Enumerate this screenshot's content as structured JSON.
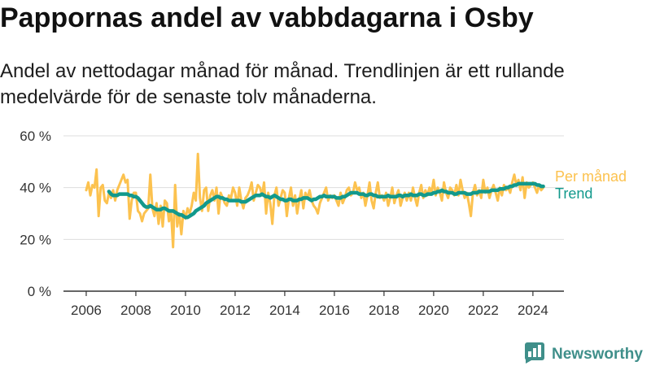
{
  "chart_data": {
    "type": "line",
    "title": "Pappornas andel av vabbdagarna i Osby",
    "subtitle": "Andel av nettodagar månad för månad. Trendlinjen är ett rullande medelvärde för de senaste tolv månaderna.",
    "xlabel": "",
    "ylabel": "",
    "xlim": [
      "2005-02-01",
      "2025-04-01"
    ],
    "ylim": [
      0,
      60
    ],
    "grid": "horizontal",
    "legend": "right",
    "yticks": [
      {
        "value": 0,
        "label": "0 %"
      },
      {
        "value": 20,
        "label": "20 %"
      },
      {
        "value": 40,
        "label": "40 %"
      },
      {
        "value": 60,
        "label": "60 %"
      }
    ],
    "xticks": [
      {
        "value": "2006-01-01",
        "label": "2006"
      },
      {
        "value": "2008-01-01",
        "label": "2008"
      },
      {
        "value": "2010-01-01",
        "label": "2010"
      },
      {
        "value": "2012-01-01",
        "label": "2012"
      },
      {
        "value": "2014-01-01",
        "label": "2014"
      },
      {
        "value": "2016-01-01",
        "label": "2016"
      },
      {
        "value": "2018-01-01",
        "label": "2018"
      },
      {
        "value": "2020-01-01",
        "label": "2020"
      },
      {
        "value": "2022-01-01",
        "label": "2022"
      },
      {
        "value": "2024-01-01",
        "label": "2024"
      }
    ],
    "x": [
      "2006-01",
      "2006-02",
      "2006-03",
      "2006-04",
      "2006-05",
      "2006-06",
      "2006-07",
      "2006-08",
      "2006-09",
      "2006-10",
      "2006-11",
      "2006-12",
      "2007-01",
      "2007-02",
      "2007-03",
      "2007-04",
      "2007-05",
      "2007-06",
      "2007-07",
      "2007-08",
      "2007-09",
      "2007-10",
      "2007-11",
      "2007-12",
      "2008-01",
      "2008-02",
      "2008-03",
      "2008-04",
      "2008-05",
      "2008-06",
      "2008-07",
      "2008-08",
      "2008-09",
      "2008-10",
      "2008-11",
      "2008-12",
      "2009-01",
      "2009-02",
      "2009-03",
      "2009-04",
      "2009-05",
      "2009-06",
      "2009-07",
      "2009-08",
      "2009-09",
      "2009-10",
      "2009-11",
      "2009-12",
      "2010-01",
      "2010-02",
      "2010-03",
      "2010-04",
      "2010-05",
      "2010-06",
      "2010-07",
      "2010-08",
      "2010-09",
      "2010-10",
      "2010-11",
      "2010-12",
      "2011-01",
      "2011-02",
      "2011-03",
      "2011-04",
      "2011-05",
      "2011-06",
      "2011-07",
      "2011-08",
      "2011-09",
      "2011-10",
      "2011-11",
      "2011-12",
      "2012-01",
      "2012-02",
      "2012-03",
      "2012-04",
      "2012-05",
      "2012-06",
      "2012-07",
      "2012-08",
      "2012-09",
      "2012-10",
      "2012-11",
      "2012-12",
      "2013-01",
      "2013-02",
      "2013-03",
      "2013-04",
      "2013-05",
      "2013-06",
      "2013-07",
      "2013-08",
      "2013-09",
      "2013-10",
      "2013-11",
      "2013-12",
      "2014-01",
      "2014-02",
      "2014-03",
      "2014-04",
      "2014-05",
      "2014-06",
      "2014-07",
      "2014-08",
      "2014-09",
      "2014-10",
      "2014-11",
      "2014-12",
      "2015-01",
      "2015-02",
      "2015-03",
      "2015-04",
      "2015-05",
      "2015-06",
      "2015-07",
      "2015-08",
      "2015-09",
      "2015-10",
      "2015-11",
      "2015-12",
      "2016-01",
      "2016-02",
      "2016-03",
      "2016-04",
      "2016-05",
      "2016-06",
      "2016-07",
      "2016-08",
      "2016-09",
      "2016-10",
      "2016-11",
      "2016-12",
      "2017-01",
      "2017-02",
      "2017-03",
      "2017-04",
      "2017-05",
      "2017-06",
      "2017-07",
      "2017-08",
      "2017-09",
      "2017-10",
      "2017-11",
      "2017-12",
      "2018-01",
      "2018-02",
      "2018-03",
      "2018-04",
      "2018-05",
      "2018-06",
      "2018-07",
      "2018-08",
      "2018-09",
      "2018-10",
      "2018-11",
      "2018-12",
      "2019-01",
      "2019-02",
      "2019-03",
      "2019-04",
      "2019-05",
      "2019-06",
      "2019-07",
      "2019-08",
      "2019-09",
      "2019-10",
      "2019-11",
      "2019-12",
      "2020-01",
      "2020-02",
      "2020-03",
      "2020-04",
      "2020-05",
      "2020-06",
      "2020-07",
      "2020-08",
      "2020-09",
      "2020-10",
      "2020-11",
      "2020-12",
      "2021-01",
      "2021-02",
      "2021-03",
      "2021-04",
      "2021-05",
      "2021-06",
      "2021-07",
      "2021-08",
      "2021-09",
      "2021-10",
      "2021-11",
      "2021-12",
      "2022-01",
      "2022-02",
      "2022-03",
      "2022-04",
      "2022-05",
      "2022-06",
      "2022-07",
      "2022-08",
      "2022-09",
      "2022-10",
      "2022-11",
      "2022-12",
      "2023-01",
      "2023-02",
      "2023-03",
      "2023-04",
      "2023-05",
      "2023-06",
      "2023-07",
      "2023-08",
      "2023-09",
      "2023-10",
      "2023-11",
      "2023-12",
      "2024-01",
      "2024-02",
      "2024-03",
      "2024-04",
      "2024-05",
      "2024-06"
    ],
    "series": [
      {
        "name": "Per månad",
        "color": "#fcc24f",
        "values": [
          39,
          42,
          37,
          41,
          40,
          47,
          29,
          40,
          41,
          35,
          34,
          38,
          36,
          39,
          35,
          39,
          41,
          43,
          45,
          42,
          43,
          28,
          35,
          38,
          38,
          31,
          30,
          27,
          30,
          31,
          32,
          45,
          32,
          29,
          34,
          26,
          33,
          25,
          35,
          34,
          27,
          31,
          17,
          41,
          25,
          30,
          22,
          31,
          28,
          32,
          30,
          33,
          38,
          35,
          53,
          36,
          31,
          39,
          40,
          31,
          37,
          39,
          35,
          40,
          30,
          38,
          36,
          34,
          33,
          37,
          36,
          40,
          38,
          33,
          40,
          35,
          32,
          36,
          37,
          39,
          42,
          35,
          38,
          41,
          40,
          37,
          42,
          30,
          38,
          34,
          26,
          37,
          40,
          33,
          36,
          39,
          38,
          29,
          36,
          40,
          33,
          37,
          30,
          35,
          39,
          32,
          38,
          36,
          39,
          35,
          33,
          32,
          30,
          34,
          36,
          38,
          40,
          35,
          37,
          36,
          37,
          35,
          33,
          38,
          34,
          36,
          39,
          40,
          37,
          38,
          42,
          39,
          40,
          36,
          38,
          33,
          37,
          42,
          35,
          32,
          38,
          42,
          36,
          37,
          35,
          38,
          33,
          36,
          40,
          34,
          37,
          39,
          33,
          36,
          38,
          35,
          38,
          35,
          40,
          36,
          33,
          38,
          41,
          36,
          39,
          37,
          40,
          38,
          43,
          37,
          40,
          38,
          35,
          42,
          38,
          36,
          40,
          39,
          37,
          41,
          37,
          43,
          39,
          36,
          38,
          34,
          29,
          38,
          41,
          37,
          39,
          36,
          43,
          38,
          40,
          36,
          39,
          41,
          38,
          35,
          40,
          37,
          41,
          39,
          40,
          38,
          42,
          45,
          41,
          43,
          39,
          44,
          36,
          42,
          40,
          41,
          42,
          40,
          38,
          41,
          39,
          40
        ]
      },
      {
        "name": "Trend",
        "color": "#12998c",
        "values": [
          null,
          null,
          null,
          null,
          null,
          null,
          null,
          null,
          null,
          null,
          null,
          38.5,
          37.5,
          37,
          37,
          37,
          37.5,
          37.5,
          37.5,
          37.5,
          37.5,
          37,
          37,
          36.5,
          36.5,
          36,
          35,
          34,
          33,
          32.5,
          32.5,
          33,
          32.5,
          32,
          31.5,
          31.5,
          31.5,
          32,
          32,
          31.5,
          31,
          31,
          31,
          30.5,
          30,
          29.5,
          29.5,
          29,
          28.5,
          28.5,
          29,
          29.5,
          30,
          31,
          31.5,
          32,
          32.5,
          33,
          34,
          34.5,
          35,
          35.5,
          36,
          36.5,
          36.5,
          36,
          36,
          35.5,
          35.5,
          35,
          35,
          35,
          35,
          35,
          35,
          34.5,
          34.5,
          34.5,
          35,
          35.5,
          36,
          36.5,
          37,
          37,
          37,
          37.5,
          37,
          36.5,
          36.5,
          36,
          36.5,
          37,
          36.5,
          36,
          35.5,
          35.5,
          35,
          35,
          35.5,
          35.5,
          35,
          35,
          35,
          35.5,
          35.5,
          36,
          36,
          36,
          35.5,
          35,
          35.5,
          35.5,
          36,
          36.5,
          36.5,
          37,
          36.5,
          36.5,
          36.5,
          36.5,
          36.5,
          36,
          36,
          36,
          36.5,
          36.5,
          37,
          37.5,
          38,
          38,
          38,
          38,
          37.5,
          37.5,
          37.5,
          37,
          37,
          37.5,
          37.5,
          37,
          37,
          36.5,
          36.5,
          36.5,
          36.5,
          36.5,
          37,
          36.5,
          36.5,
          36.5,
          36.5,
          37,
          37,
          36.5,
          37,
          37,
          37,
          37.5,
          37,
          37,
          37,
          37.5,
          37.5,
          37,
          37,
          37.5,
          37.5,
          37.5,
          38,
          38,
          38.5,
          38.5,
          39,
          38.5,
          38.5,
          38,
          38,
          38,
          37.5,
          37.5,
          38,
          38,
          38,
          38,
          37.5,
          37.5,
          37.5,
          38,
          38,
          38,
          38.5,
          38.5,
          38.5,
          38.5,
          38.5,
          38.5,
          39,
          39,
          39,
          39,
          39.5,
          39.5,
          39.5,
          40,
          40,
          40.5,
          40.5,
          41,
          41,
          41.5,
          41.5,
          41.5,
          41.5,
          41.5,
          41.5,
          41.5,
          41.5,
          41.5,
          41,
          41,
          40.5,
          40.5
        ]
      }
    ]
  },
  "branding": {
    "logo_text": "Newsworthy",
    "logo_icon": "newsworthy-bar-chart-icon",
    "color": "#3f8f8a"
  }
}
